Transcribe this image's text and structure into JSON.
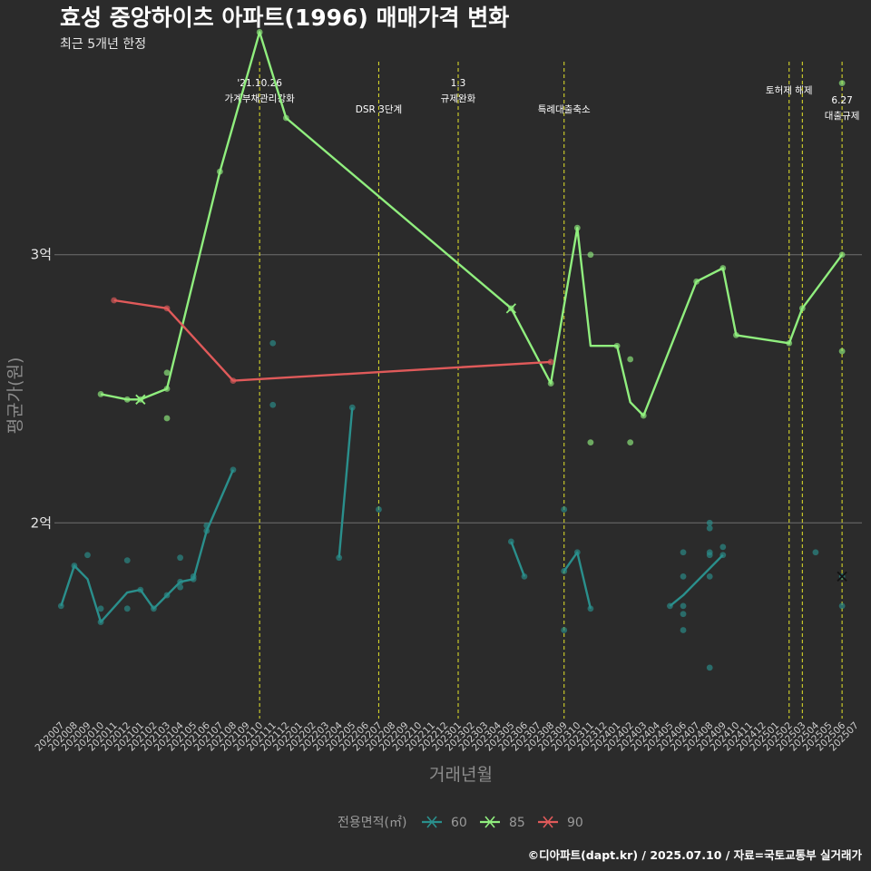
{
  "chart_data": {
    "type": "line",
    "title": "효성 중앙하이츠 아파트(1996) 매매가격 변화",
    "subtitle": "최근 5개년 한정",
    "xlabel": "거래년월",
    "ylabel": "평균가(원)",
    "caption": "©디아파트(dapt.kr) / 2025.07.10 / 자료=국토교통부 실거래가",
    "legend_title": "전용면적(㎡)",
    "legend_position": "bottom",
    "ylim": [
      12700,
      37300
    ],
    "yticks": [
      {
        "value": 20000,
        "label": "2억"
      },
      {
        "value": 30000,
        "label": "3억"
      }
    ],
    "categories": [
      "202007",
      "202008",
      "202009",
      "202010",
      "202011",
      "202012",
      "202101",
      "202102",
      "202103",
      "202104",
      "202105",
      "202106",
      "202107",
      "202108",
      "202109",
      "202110",
      "202111",
      "202112",
      "202201",
      "202202",
      "202203",
      "202204",
      "202205",
      "202206",
      "202207",
      "202208",
      "202209",
      "202210",
      "202211",
      "202212",
      "202301",
      "202302",
      "202303",
      "202304",
      "202305",
      "202306",
      "202307",
      "202308",
      "202309",
      "202310",
      "202311",
      "202312",
      "202401",
      "202402",
      "202403",
      "202404",
      "202405",
      "202406",
      "202407",
      "202408",
      "202409",
      "202410",
      "202411",
      "202412",
      "202501",
      "202502",
      "202503",
      "202504",
      "202505",
      "202506",
      "202507"
    ],
    "events": [
      {
        "x": "202110",
        "lines": [
          "'21.10.26",
          "가계부채관리강화"
        ]
      },
      {
        "x": "202207",
        "lines": [
          "DSR 3단계"
        ]
      },
      {
        "x": "202301",
        "lines": [
          "1.3",
          "규제완화"
        ]
      },
      {
        "x": "202309",
        "lines": [
          "특례대출축소"
        ]
      },
      {
        "x": "202502",
        "lines": [
          "토허제 해제"
        ]
      },
      {
        "x": "202503",
        "lines": []
      },
      {
        "x": "202506",
        "lines": [
          "6.27",
          "대출규제"
        ]
      }
    ],
    "series": [
      {
        "name": "60",
        "color": "#2a8f8c",
        "segments": [
          [
            [
              "202007",
              16900
            ],
            [
              "202008",
              18400
            ],
            [
              "202009",
              17900
            ],
            [
              "202010",
              16300
            ],
            [
              "202012",
              17400
            ],
            [
              "202101",
              17500
            ],
            [
              "202102",
              16800
            ],
            [
              "202103",
              17300
            ],
            [
              "202104",
              17800
            ],
            [
              "202105",
              17900
            ],
            [
              "202106",
              19700
            ],
            [
              "202108",
              21980
            ]
          ],
          [
            [
              "202204",
              18700
            ],
            [
              "202205",
              24300
            ]
          ],
          [
            [
              "202305",
              19300
            ],
            [
              "202306",
              18000
            ]
          ],
          [
            [
              "202309",
              18200
            ],
            [
              "202310",
              18900
            ],
            [
              "202311",
              16800
            ]
          ],
          [
            [
              "202405",
              16900
            ],
            [
              "202406",
              17300
            ],
            [
              "202409",
              18800
            ]
          ]
        ],
        "points": [
          [
            "202007",
            16900
          ],
          [
            "202008",
            18400
          ],
          [
            "202009",
            18800
          ],
          [
            "202010",
            16800
          ],
          [
            "202010",
            16300
          ],
          [
            "202012",
            18600
          ],
          [
            "202012",
            16800
          ],
          [
            "202101",
            17500
          ],
          [
            "202102",
            16800
          ],
          [
            "202103",
            17300
          ],
          [
            "202104",
            17600
          ],
          [
            "202104",
            17800
          ],
          [
            "202104",
            18700
          ],
          [
            "202105",
            17900
          ],
          [
            "202105",
            18000
          ],
          [
            "202106",
            19700
          ],
          [
            "202106",
            19900
          ],
          [
            "202108",
            21980
          ],
          [
            "202111",
            26700
          ],
          [
            "202111",
            24400
          ],
          [
            "202204",
            18700
          ],
          [
            "202205",
            24300
          ],
          [
            "202207",
            20500
          ],
          [
            "202305",
            19300
          ],
          [
            "202306",
            18000
          ],
          [
            "202309",
            16000
          ],
          [
            "202309",
            18200
          ],
          [
            "202309",
            20500
          ],
          [
            "202310",
            18900
          ],
          [
            "202311",
            16800
          ],
          [
            "202405",
            16900
          ],
          [
            "202406",
            18900
          ],
          [
            "202406",
            18000
          ],
          [
            "202406",
            16900
          ],
          [
            "202406",
            16600
          ],
          [
            "202406",
            16000
          ],
          [
            "202408",
            20000
          ],
          [
            "202408",
            19800
          ],
          [
            "202408",
            18900
          ],
          [
            "202408",
            18800
          ],
          [
            "202408",
            18000
          ],
          [
            "202408",
            14600
          ],
          [
            "202409",
            18800
          ],
          [
            "202409",
            19100
          ],
          [
            "202504",
            18900
          ],
          [
            "202506",
            18000
          ],
          [
            "202506",
            16900
          ]
        ],
        "cross_points": [
          [
            "202506",
            18000
          ]
        ]
      },
      {
        "name": "85",
        "color": "#90ee7e",
        "segments": [
          [
            [
              "202010",
              24800
            ],
            [
              "202012",
              24600
            ],
            [
              "202101",
              24600
            ],
            [
              "202103",
              25000
            ],
            [
              "202107",
              33100
            ],
            [
              "202110",
              38300
            ],
            [
              "202112",
              35100
            ],
            [
              "202305",
              28000
            ],
            [
              "202308",
              25200
            ],
            [
              "202310",
              31000
            ],
            [
              "202311",
              26600
            ],
            [
              "202401",
              26600
            ],
            [
              "202402",
              24500
            ],
            [
              "202403",
              24000
            ],
            [
              "202407",
              29000
            ],
            [
              "202409",
              29500
            ],
            [
              "202410",
              27000
            ],
            [
              "202502",
              26700
            ],
            [
              "202503",
              28000
            ],
            [
              "202506",
              30000
            ]
          ]
        ],
        "points": [
          [
            "202010",
            24800
          ],
          [
            "202012",
            24600
          ],
          [
            "202101",
            24600
          ],
          [
            "202103",
            25000
          ],
          [
            "202103",
            25600
          ],
          [
            "202103",
            23900
          ],
          [
            "202107",
            33100
          ],
          [
            "202110",
            38300
          ],
          [
            "202112",
            35100
          ],
          [
            "202305",
            28000
          ],
          [
            "202308",
            25200
          ],
          [
            "202310",
            31000
          ],
          [
            "202311",
            30000
          ],
          [
            "202311",
            23000
          ],
          [
            "202401",
            26600
          ],
          [
            "202402",
            26100
          ],
          [
            "202402",
            23000
          ],
          [
            "202403",
            24000
          ],
          [
            "202407",
            29000
          ],
          [
            "202409",
            29500
          ],
          [
            "202410",
            27000
          ],
          [
            "202502",
            26700
          ],
          [
            "202503",
            28000
          ],
          [
            "202506",
            30000
          ],
          [
            "202506",
            36400
          ],
          [
            "202506",
            26400
          ]
        ],
        "cross_points": [
          [
            "202101",
            24600
          ],
          [
            "202305",
            28000
          ]
        ]
      },
      {
        "name": "90",
        "color": "#e05a5a",
        "segments": [
          [
            [
              "202011",
              28300
            ],
            [
              "202103",
              28000
            ],
            [
              "202108",
              25300
            ],
            [
              "202308",
              26000
            ]
          ]
        ],
        "points": [
          [
            "202011",
            28300
          ],
          [
            "202103",
            28000
          ],
          [
            "202108",
            25300
          ],
          [
            "202308",
            26000
          ]
        ],
        "cross_points": []
      }
    ]
  }
}
